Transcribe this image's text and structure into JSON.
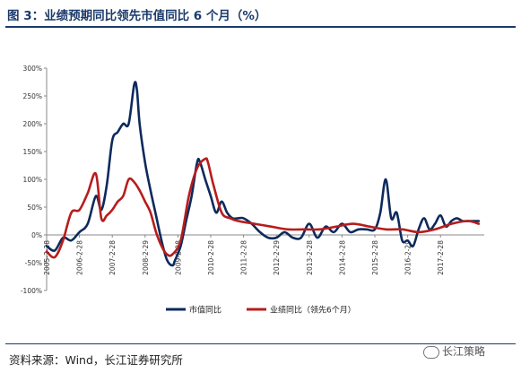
{
  "figure": {
    "title": "图 3：业绩预期同比领先市值同比 6 个月（%）",
    "source": "资料来源：Wind，长江证券研究所",
    "watermark": "长江策略"
  },
  "chart_data": {
    "type": "line",
    "title": "",
    "xlabel": "",
    "ylabel": "",
    "ylim": [
      -100,
      300
    ],
    "yticks": [
      "300%",
      "250%",
      "200%",
      "150%",
      "100%",
      "50%",
      "0%",
      "-50%",
      "-100%"
    ],
    "x_range": [
      "2005-02",
      "2018-06"
    ],
    "xticks": [
      "2005-2-28",
      "2006-2-28",
      "2007-2-28",
      "2008-2-29",
      "2009-2-28",
      "2010-2-28",
      "2011-2-28",
      "2012-2-29",
      "2013-2-28",
      "2014-2-28",
      "2015-2-28",
      "2016-2-29",
      "2017-2-28"
    ],
    "grid": false,
    "legend_position": "bottom",
    "series": [
      {
        "name": "市值同比",
        "color": "#0d2a5c",
        "x": [
          "2005-02",
          "2005-05",
          "2005-08",
          "2005-11",
          "2006-02",
          "2006-05",
          "2006-08",
          "2006-10",
          "2006-12",
          "2007-02",
          "2007-04",
          "2007-06",
          "2007-08",
          "2007-10",
          "2007-11",
          "2007-12",
          "2008-02",
          "2008-04",
          "2008-06",
          "2008-08",
          "2008-10",
          "2008-12",
          "2009-01",
          "2009-03",
          "2009-05",
          "2009-07",
          "2009-09",
          "2009-10",
          "2009-12",
          "2010-02",
          "2010-04",
          "2010-06",
          "2010-08",
          "2010-10",
          "2010-12",
          "2011-02",
          "2011-05",
          "2011-08",
          "2011-11",
          "2012-02",
          "2012-05",
          "2012-08",
          "2012-11",
          "2013-02",
          "2013-05",
          "2013-08",
          "2013-11",
          "2014-02",
          "2014-05",
          "2014-08",
          "2014-11",
          "2015-02",
          "2015-04",
          "2015-06",
          "2015-08",
          "2015-10",
          "2015-12",
          "2016-02",
          "2016-04",
          "2016-06",
          "2016-08",
          "2016-10",
          "2016-12",
          "2017-02",
          "2017-04",
          "2017-06",
          "2017-08",
          "2017-10",
          "2017-12",
          "2018-02",
          "2018-04"
        ],
        "values": [
          -20,
          -28,
          -5,
          -10,
          5,
          20,
          70,
          45,
          90,
          170,
          185,
          200,
          200,
          270,
          262,
          200,
          130,
          80,
          35,
          -10,
          -45,
          -55,
          -45,
          -20,
          25,
          70,
          130,
          132,
          100,
          70,
          40,
          60,
          40,
          30,
          30,
          30,
          20,
          5,
          -5,
          -5,
          5,
          -5,
          -5,
          20,
          -5,
          15,
          5,
          20,
          5,
          10,
          10,
          10,
          40,
          100,
          30,
          40,
          -10,
          -10,
          -20,
          10,
          30,
          10,
          20,
          35,
          15,
          25,
          30,
          25,
          25,
          25,
          25
        ]
      },
      {
        "name": "业绩同比（领先6个月）",
        "color": "#b71c1c",
        "x": [
          "2005-02",
          "2005-05",
          "2005-08",
          "2005-11",
          "2006-02",
          "2006-05",
          "2006-08",
          "2006-10",
          "2006-12",
          "2007-02",
          "2007-04",
          "2007-06",
          "2007-08",
          "2007-10",
          "2007-12",
          "2008-02",
          "2008-04",
          "2008-06",
          "2008-08",
          "2008-10",
          "2008-12",
          "2009-03",
          "2009-06",
          "2009-09",
          "2009-12",
          "2010-01",
          "2010-03",
          "2010-06",
          "2010-09",
          "2010-12",
          "2011-06",
          "2011-12",
          "2012-06",
          "2012-12",
          "2013-06",
          "2013-12",
          "2014-06",
          "2014-12",
          "2015-06",
          "2015-12",
          "2016-06",
          "2016-12",
          "2017-06",
          "2017-12",
          "2018-04"
        ],
        "values": [
          -30,
          -40,
          -10,
          40,
          45,
          75,
          110,
          30,
          35,
          45,
          60,
          70,
          100,
          95,
          80,
          60,
          40,
          5,
          -20,
          -35,
          -35,
          -10,
          70,
          120,
          137,
          130,
          90,
          40,
          30,
          25,
          20,
          15,
          10,
          10,
          10,
          15,
          20,
          15,
          10,
          10,
          5,
          10,
          20,
          25,
          20
        ]
      }
    ]
  }
}
